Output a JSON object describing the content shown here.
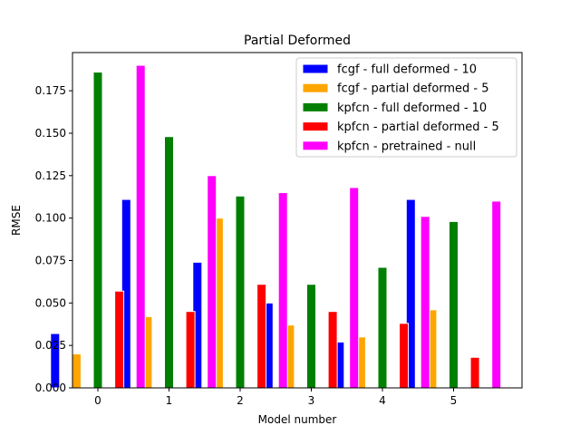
{
  "chart_data": {
    "type": "bar",
    "title": "Partial Deformed",
    "xlabel": "Model number",
    "ylabel": "RMSE",
    "categories": [
      "0",
      "1",
      "2",
      "3",
      "4",
      "5"
    ],
    "ylim": [
      0,
      0.1975
    ],
    "yticks": [
      "0.000",
      "0.025",
      "0.050",
      "0.075",
      "0.100",
      "0.125",
      "0.150",
      "0.175"
    ],
    "grid": false,
    "legend_position": "top-right",
    "series": [
      {
        "name": "fcgf - full deformed - 10",
        "color": "#0000ff",
        "values": [
          0.032,
          0.111,
          0.074,
          0.05,
          0.027,
          0.111
        ]
      },
      {
        "name": "fcgf - partial deformed - 5",
        "color": "#ffa500",
        "values": [
          0.02,
          0.042,
          0.1,
          0.037,
          0.03,
          0.046
        ]
      },
      {
        "name": "kpfcn - full deformed - 10",
        "color": "#008000",
        "values": [
          0.186,
          0.148,
          0.113,
          0.061,
          0.071,
          0.098
        ]
      },
      {
        "name": "kpfcn - partial deformed - 5",
        "color": "#ff0000",
        "values": [
          0.057,
          0.045,
          0.061,
          0.045,
          0.038,
          0.018
        ]
      },
      {
        "name": "kpfcn - pretrained - null",
        "color": "#ff00ff",
        "values": [
          0.19,
          0.125,
          0.115,
          0.118,
          0.101,
          0.11
        ]
      }
    ]
  }
}
